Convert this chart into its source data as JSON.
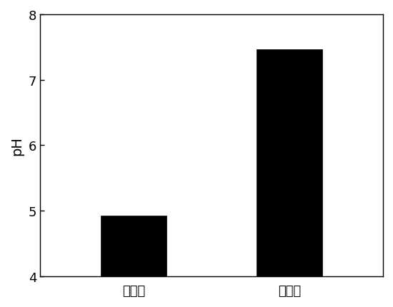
{
  "categories": [
    "修复前",
    "修复后"
  ],
  "values": [
    4.93,
    7.47
  ],
  "bar_colors": [
    "#000000",
    "#000000"
  ],
  "bar_width": 0.42,
  "ylabel": "pH",
  "ylim": [
    4,
    8
  ],
  "ymin": 4,
  "yticks": [
    4,
    5,
    6,
    7,
    8
  ],
  "background_color": "#ffffff",
  "ylabel_fontsize": 14,
  "tick_fontsize": 13,
  "xticklabel_fontsize": 13,
  "edge_color": "#000000"
}
